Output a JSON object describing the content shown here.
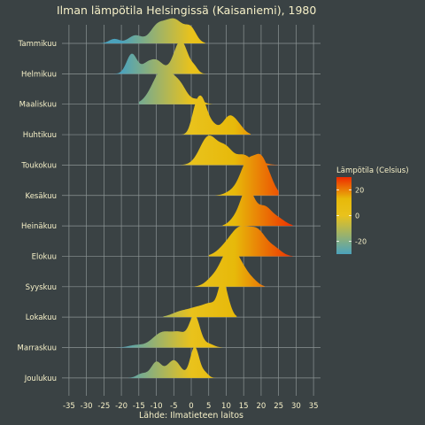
{
  "chart_data": {
    "type": "ridgeline",
    "title": "Ilman lämpötila Helsingissä (Kaisaniemi), 1980",
    "xlabel": "Lähde: Ilmatieteen laitos",
    "ylabel": "",
    "xlim": [
      -37,
      37
    ],
    "xticks": [
      -35,
      -30,
      -25,
      -20,
      -15,
      -10,
      -5,
      0,
      5,
      10,
      15,
      20,
      25,
      30,
      35
    ],
    "grid": true,
    "legend": {
      "title": "Lämpötila (Celsius)",
      "placement": "right",
      "ticks": [
        20,
        0,
        -20
      ],
      "range": [
        -30,
        30
      ],
      "colors": [
        "#4ba2bc",
        "#e9c21c",
        "#e7b90a",
        "#ee2a00"
      ]
    },
    "series": [
      {
        "name": "Tammikuu",
        "range": [
          -26,
          4
        ],
        "peaks": [
          [
            -22,
            0.1,
            1.5
          ],
          [
            -16,
            0.18,
            2.0
          ],
          [
            -10,
            0.3,
            2.0
          ],
          [
            -5,
            0.55,
            3.0
          ],
          [
            0,
            0.25,
            1.5
          ]
        ]
      },
      {
        "name": "Helmikuu",
        "range": [
          -24,
          4
        ],
        "peaks": [
          [
            -17,
            0.45,
            1.5
          ],
          [
            -13,
            0.15,
            1.5
          ],
          [
            -10,
            0.3,
            2.0
          ],
          [
            -3,
            0.75,
            2.0
          ],
          [
            1,
            0.1,
            1.0
          ]
        ]
      },
      {
        "name": "Maaliskuu",
        "range": [
          -15,
          6
        ],
        "peaks": [
          [
            -8,
            0.8,
            3.0
          ],
          [
            -3,
            0.3,
            2.0
          ],
          [
            2,
            0.1,
            1.5
          ]
        ]
      },
      {
        "name": "Huhtikuu",
        "range": [
          -4,
          17
        ],
        "peaks": [
          [
            1,
            0.35,
            1.2
          ],
          [
            3,
            0.75,
            1.5
          ],
          [
            6,
            0.2,
            1.5
          ],
          [
            11,
            0.42,
            2.0
          ],
          [
            14,
            0.1,
            1.5
          ]
        ]
      },
      {
        "name": "Toukokuu",
        "range": [
          -3,
          25
        ],
        "peaks": [
          [
            5,
            0.65,
            2.5
          ],
          [
            10,
            0.35,
            2.0
          ],
          [
            15,
            0.22,
            2.0
          ],
          [
            20,
            0.05,
            2.0
          ]
        ]
      },
      {
        "name": "Kesäkuu",
        "range": [
          7,
          25
        ],
        "peaks": [
          [
            12,
            0.1,
            2.0
          ],
          [
            16,
            0.7,
            2.0
          ],
          [
            20,
            0.8,
            2.0
          ],
          [
            23,
            0.15,
            1.5
          ]
        ]
      },
      {
        "name": "Heinäkuu",
        "range": [
          9,
          29
        ],
        "peaks": [
          [
            12,
            0.1,
            1.5
          ],
          [
            16,
            0.85,
            2.0
          ],
          [
            21,
            0.4,
            2.0
          ],
          [
            25,
            0.15,
            2.0
          ]
        ]
      },
      {
        "name": "Elokuu",
        "range": [
          5,
          29
        ],
        "peaks": [
          [
            10,
            0.2,
            2.5
          ],
          [
            14,
            0.55,
            2.5
          ],
          [
            19,
            0.55,
            2.5
          ],
          [
            24,
            0.15,
            2.0
          ]
        ]
      },
      {
        "name": "Syyskuu",
        "range": [
          1,
          21
        ],
        "peaks": [
          [
            6,
            0.15,
            2.0
          ],
          [
            11,
            0.85,
            2.5
          ],
          [
            15,
            0.25,
            2.0
          ],
          [
            18,
            0.08,
            1.5
          ]
        ]
      },
      {
        "name": "Lokakuu",
        "range": [
          -8,
          13
        ],
        "peaks": [
          [
            -3,
            0.12,
            2.5
          ],
          [
            2,
            0.2,
            2.5
          ],
          [
            6,
            0.25,
            2.0
          ],
          [
            9,
            0.75,
            1.2
          ],
          [
            11,
            0.15,
            1.0
          ]
        ]
      },
      {
        "name": "Marraskuu",
        "range": [
          -22,
          9
        ],
        "peaks": [
          [
            -16,
            0.05,
            2.0
          ],
          [
            -8,
            0.35,
            3.0
          ],
          [
            -3,
            0.25,
            2.0
          ],
          [
            1,
            0.7,
            1.5
          ],
          [
            5,
            0.08,
            1.5
          ]
        ]
      },
      {
        "name": "Joulukuu",
        "range": [
          -18,
          7
        ],
        "peaks": [
          [
            -14,
            0.1,
            1.5
          ],
          [
            -10,
            0.35,
            1.5
          ],
          [
            -5,
            0.4,
            2.0
          ],
          [
            1,
            0.7,
            1.3
          ],
          [
            4,
            0.1,
            1.0
          ]
        ]
      }
    ]
  }
}
